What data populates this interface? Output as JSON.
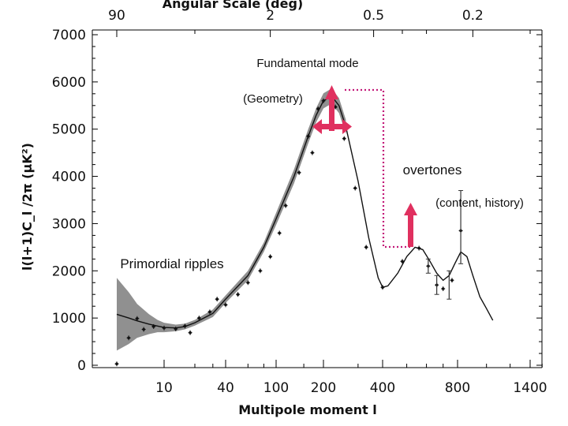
{
  "chart_data": {
    "type": "scatter",
    "title": "Angular Scale (deg)",
    "xlabel": "Multipole moment l",
    "ylabel": "l(l+1)C_l /2π (μK²)",
    "x_scale": "log-ish",
    "xlim": [
      2,
      2000
    ],
    "ylim": [
      0,
      7000
    ],
    "x_tick_labels": [
      "10",
      "40",
      "100",
      "200",
      "400",
      "800",
      "1400"
    ],
    "x_tick_values": [
      10,
      40,
      100,
      200,
      400,
      800,
      1400
    ],
    "y_tick_labels": [
      "0",
      "1000",
      "2000",
      "3000",
      "4000",
      "5000",
      "6000",
      "7000"
    ],
    "y_tick_values": [
      0,
      1000,
      2000,
      3000,
      4000,
      5000,
      6000,
      7000
    ],
    "top_axis_labels": [
      "90",
      "2",
      "0.5",
      "0.2"
    ],
    "top_axis_l_values": [
      2,
      90,
      360,
      900
    ],
    "theory_curve": {
      "l": [
        2,
        3,
        4,
        6,
        8,
        10,
        13,
        16,
        20,
        30,
        40,
        60,
        80,
        100,
        130,
        160,
        180,
        200,
        220,
        240,
        260,
        300,
        340,
        380,
        400,
        420,
        460,
        500,
        540,
        580,
        620,
        660,
        700,
        740,
        780,
        820,
        860,
        900,
        950,
        1000,
        1050
      ],
      "dl": [
        1080,
        1000,
        940,
        870,
        830,
        800,
        790,
        820,
        900,
        1100,
        1400,
        1900,
        2500,
        3100,
        4000,
        4850,
        5300,
        5600,
        5700,
        5500,
        5050,
        3900,
        2700,
        1850,
        1650,
        1680,
        1950,
        2300,
        2500,
        2450,
        2200,
        1950,
        1800,
        1900,
        2150,
        2400,
        2300,
        1900,
        1450,
        1200,
        950
      ]
    },
    "cosmic_variance_upper": [
      1850,
      1550,
      1300,
      1080,
      960,
      900,
      860,
      880,
      960,
      1180,
      1480,
      2000,
      2600,
      3230,
      4150,
      5000,
      5450,
      5760,
      5860,
      5660,
      5200
    ],
    "cosmic_variance_lower": [
      310,
      450,
      580,
      660,
      700,
      700,
      720,
      760,
      840,
      1020,
      1320,
      1800,
      2400,
      2970,
      3850,
      4700,
      5150,
      5440,
      5540,
      5340,
      4900
    ],
    "data_points": [
      {
        "l": 2,
        "dl": 30
      },
      {
        "l": 3,
        "dl": 580
      },
      {
        "l": 4,
        "dl": 990
      },
      {
        "l": 5,
        "dl": 760
      },
      {
        "l": 7,
        "dl": 820
      },
      {
        "l": 10,
        "dl": 790
      },
      {
        "l": 13,
        "dl": 770
      },
      {
        "l": 16,
        "dl": 830
      },
      {
        "l": 18,
        "dl": 690
      },
      {
        "l": 22,
        "dl": 1000
      },
      {
        "l": 28,
        "dl": 1130
      },
      {
        "l": 33,
        "dl": 1400
      },
      {
        "l": 40,
        "dl": 1280
      },
      {
        "l": 50,
        "dl": 1500
      },
      {
        "l": 60,
        "dl": 1750
      },
      {
        "l": 75,
        "dl": 2000
      },
      {
        "l": 90,
        "dl": 2300
      },
      {
        "l": 105,
        "dl": 2800
      },
      {
        "l": 115,
        "dl": 3380
      },
      {
        "l": 140,
        "dl": 4080
      },
      {
        "l": 160,
        "dl": 4850
      },
      {
        "l": 170,
        "dl": 4500
      },
      {
        "l": 185,
        "dl": 5430
      },
      {
        "l": 200,
        "dl": 5600
      },
      {
        "l": 215,
        "dl": 5720
      },
      {
        "l": 230,
        "dl": 5470
      },
      {
        "l": 255,
        "dl": 4800
      },
      {
        "l": 290,
        "dl": 3750
      },
      {
        "l": 330,
        "dl": 2500
      },
      {
        "l": 400,
        "dl": 1650
      },
      {
        "l": 480,
        "dl": 2200
      },
      {
        "l": 560,
        "dl": 2480
      },
      {
        "l": 610,
        "dl": 2100
      },
      {
        "l": 660,
        "dl": 1700
      },
      {
        "l": 700,
        "dl": 1620
      },
      {
        "l": 760,
        "dl": 1800
      },
      {
        "l": 820,
        "dl": 2850
      }
    ],
    "error_bars": [
      {
        "l": 610,
        "lo": 1950,
        "hi": 2250
      },
      {
        "l": 660,
        "lo": 1500,
        "hi": 1900
      },
      {
        "l": 740,
        "lo": 1400,
        "hi": 2000
      },
      {
        "l": 820,
        "lo": 2150,
        "hi": 3700
      }
    ]
  },
  "annotations": {
    "fundamental": "Fundamental mode",
    "geometry": "(Geometry)",
    "overtones": "overtones",
    "content": "(content, history)",
    "primordial": "Primordial ripples"
  },
  "colors": {
    "arrow": "#e0305f",
    "dotted": "#c21878",
    "band": "#909090",
    "curve": "#111111",
    "points": "#111111"
  }
}
